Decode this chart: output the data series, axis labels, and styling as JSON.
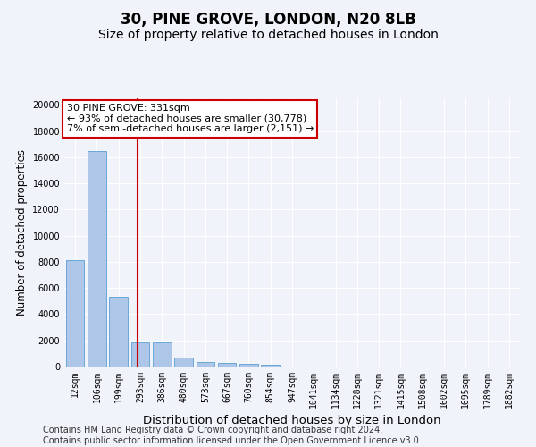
{
  "title1": "30, PINE GROVE, LONDON, N20 8LB",
  "title2": "Size of property relative to detached houses in London",
  "xlabel": "Distribution of detached houses by size in London",
  "ylabel": "Number of detached properties",
  "categories": [
    "12sqm",
    "106sqm",
    "199sqm",
    "293sqm",
    "386sqm",
    "480sqm",
    "573sqm",
    "667sqm",
    "760sqm",
    "854sqm",
    "947sqm",
    "1041sqm",
    "1134sqm",
    "1228sqm",
    "1321sqm",
    "1415sqm",
    "1508sqm",
    "1602sqm",
    "1695sqm",
    "1789sqm",
    "1882sqm"
  ],
  "values": [
    8100,
    16500,
    5300,
    1850,
    1850,
    650,
    330,
    270,
    200,
    170,
    0,
    0,
    0,
    0,
    0,
    0,
    0,
    0,
    0,
    0,
    0
  ],
  "bar_color": "#aec6e8",
  "bar_edge_color": "#5a9fd4",
  "vline_color": "#cc0000",
  "annotation_text": "30 PINE GROVE: 331sqm\n← 93% of detached houses are smaller (30,778)\n7% of semi-detached houses are larger (2,151) →",
  "annotation_box_color": "white",
  "annotation_box_edge_color": "#cc0000",
  "ylim": [
    0,
    20500
  ],
  "yticks": [
    0,
    2000,
    4000,
    6000,
    8000,
    10000,
    12000,
    14000,
    16000,
    18000,
    20000
  ],
  "footer_line1": "Contains HM Land Registry data © Crown copyright and database right 2024.",
  "footer_line2": "Contains public sector information licensed under the Open Government Licence v3.0.",
  "bg_color": "#f0f4fa",
  "plot_bg_color": "#f0f4fa",
  "grid_color": "#ffffff",
  "title1_fontsize": 12,
  "title2_fontsize": 10,
  "xlabel_fontsize": 9.5,
  "ylabel_fontsize": 8.5,
  "tick_fontsize": 7,
  "footer_fontsize": 7,
  "annot_fontsize": 8
}
